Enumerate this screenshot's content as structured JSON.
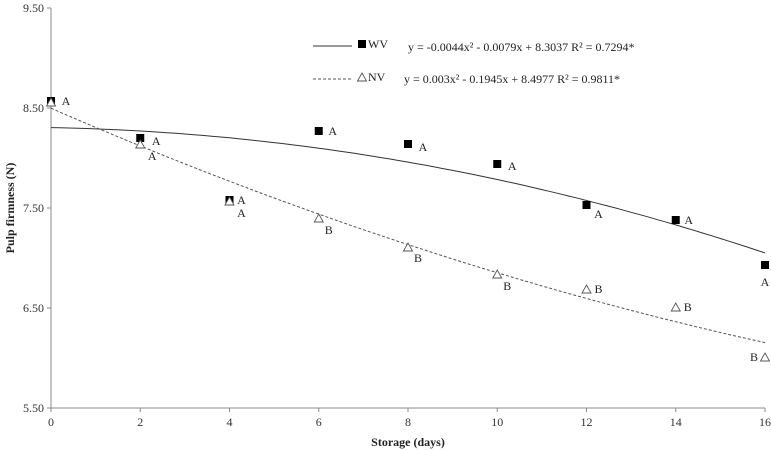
{
  "chart_data": {
    "type": "scatter",
    "xlabel": "Storage (days)",
    "ylabel": "Pulp firmness (N)",
    "xlim": [
      0,
      16
    ],
    "ylim": [
      5.5,
      9.5
    ],
    "xticks": [
      "0",
      "2",
      "4",
      "6",
      "8",
      "10",
      "12",
      "14",
      "16"
    ],
    "yticks": [
      "5.50",
      "6.50",
      "7.50",
      "8.50",
      "9.50"
    ],
    "grid": false,
    "legend_position": "top-right",
    "series": [
      {
        "name": "WV",
        "marker": "filled-square",
        "line_style": "solid",
        "color": "#000000",
        "equation": "y = -0.0044x² - 0.0079x + 8.3037  R² = 0.7294*",
        "fit": {
          "a": -0.0044,
          "b": -0.0079,
          "c": 8.3037
        },
        "x": [
          0,
          2,
          4,
          6,
          8,
          10,
          12,
          14,
          16
        ],
        "values": [
          8.57,
          8.2,
          7.58,
          8.27,
          8.14,
          7.94,
          7.53,
          7.38,
          6.93
        ],
        "labels": [
          "A",
          "A",
          "A",
          "A",
          "A",
          "A",
          "A",
          "A",
          "A"
        ]
      },
      {
        "name": "NV",
        "marker": "open-triangle",
        "line_style": "dashed",
        "color": "#555555",
        "equation": "y = 0.003x² - 0.1945x + 8.4977  R² = 0.9811*",
        "fit": {
          "a": 0.003,
          "b": -0.1945,
          "c": 8.4977
        },
        "x": [
          0,
          2,
          4,
          6,
          8,
          10,
          12,
          14,
          16
        ],
        "values": [
          8.56,
          8.14,
          7.57,
          7.4,
          7.11,
          6.84,
          6.69,
          6.51,
          6.01
        ],
        "labels": [
          "A",
          "A",
          "A",
          "B",
          "B",
          "B",
          "B",
          "B",
          "B"
        ]
      }
    ]
  }
}
